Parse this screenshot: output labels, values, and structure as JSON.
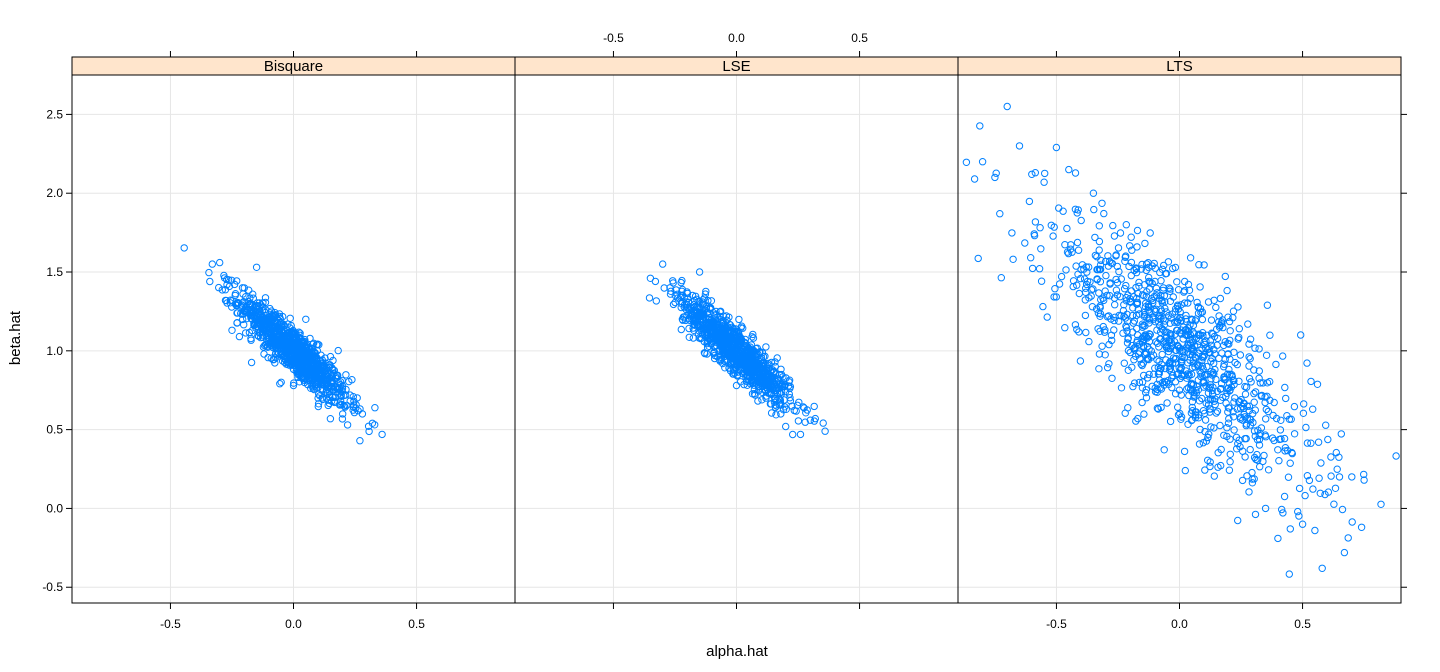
{
  "chart_data": {
    "type": "scatter",
    "xlabel": "alpha.hat",
    "ylabel": "beta.hat",
    "xlim": [
      -0.9,
      0.9
    ],
    "ylim": [
      -0.6,
      2.75
    ],
    "x_ticks": [
      -0.5,
      0.0,
      0.5
    ],
    "x_tick_labels": [
      "-0.5",
      "0.0",
      "0.5"
    ],
    "y_ticks": [
      -0.5,
      0.0,
      0.5,
      1.0,
      1.5,
      2.0,
      2.5
    ],
    "y_tick_labels": [
      "-0.5",
      "0.0",
      "0.5",
      "1.0",
      "1.5",
      "2.0",
      "2.5"
    ],
    "grid": true,
    "point_color": "#0080ff",
    "strip_color": "#ffe5cc",
    "panels": [
      {
        "name": "Bisquare",
        "n_points": 1000,
        "approx_center": [
          0.0,
          1.0
        ],
        "approx_x_sd": 0.11,
        "approx_y_sd": 0.17,
        "correlation": -0.9,
        "points": [
          [
            -0.34,
            1.44
          ],
          [
            -0.33,
            1.55
          ],
          [
            -0.3,
            1.56
          ],
          [
            -0.27,
            1.42
          ],
          [
            -0.25,
            1.13
          ],
          [
            -0.22,
            1.09
          ],
          [
            -0.15,
            1.53
          ],
          [
            -0.12,
            0.98
          ],
          [
            -0.05,
            0.8
          ],
          [
            0.0,
            0.78
          ],
          [
            0.05,
            1.2
          ],
          [
            0.1,
            0.7
          ],
          [
            0.2,
            0.6
          ],
          [
            0.22,
            0.53
          ],
          [
            0.27,
            0.43
          ],
          [
            0.28,
            0.6
          ],
          [
            0.36,
            0.47
          ]
        ]
      },
      {
        "name": "LSE",
        "n_points": 1000,
        "approx_center": [
          0.0,
          1.0
        ],
        "approx_x_sd": 0.11,
        "approx_y_sd": 0.17,
        "correlation": -0.9,
        "points": [
          [
            -0.35,
            1.46
          ],
          [
            -0.3,
            1.55
          ],
          [
            -0.27,
            1.4
          ],
          [
            -0.22,
            1.2
          ],
          [
            -0.15,
            1.5
          ],
          [
            -0.12,
            0.98
          ],
          [
            0.0,
            0.78
          ],
          [
            0.12,
            0.7
          ],
          [
            0.18,
            0.6
          ],
          [
            0.2,
            0.52
          ],
          [
            0.26,
            0.47
          ],
          [
            0.3,
            0.56
          ],
          [
            0.32,
            0.57
          ],
          [
            0.36,
            0.49
          ]
        ]
      },
      {
        "name": "LTS",
        "n_points": 1000,
        "approx_center": [
          0.0,
          1.0
        ],
        "approx_x_sd": 0.27,
        "approx_y_sd": 0.42,
        "correlation": -0.8,
        "points": [
          [
            -0.8,
            2.2
          ],
          [
            -0.75,
            2.1
          ],
          [
            -0.73,
            1.87
          ],
          [
            -0.7,
            2.55
          ],
          [
            -0.65,
            2.3
          ],
          [
            -0.6,
            2.12
          ],
          [
            -0.55,
            2.07
          ],
          [
            -0.5,
            2.29
          ],
          [
            -0.45,
            2.15
          ],
          [
            -0.35,
            2.0
          ],
          [
            0.35,
            0.0
          ],
          [
            0.4,
            -0.19
          ],
          [
            0.45,
            -0.13
          ],
          [
            0.5,
            -0.1
          ],
          [
            0.55,
            -0.14
          ],
          [
            0.58,
            -0.38
          ],
          [
            0.65,
            0.2
          ],
          [
            0.67,
            -0.28
          ],
          [
            0.7,
            0.2
          ],
          [
            0.75,
            0.18
          ],
          [
            0.74,
            -0.12
          ]
        ]
      }
    ]
  }
}
